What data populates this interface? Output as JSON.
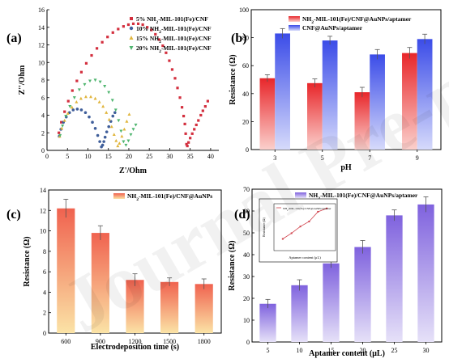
{
  "watermark": "Journal Pre-proof",
  "chart_data": [
    {
      "panel": "(a)",
      "type": "scatter",
      "xlabel": "Z'/Ohm",
      "ylabel": "Z''/Ohm",
      "xlim": [
        0,
        42
      ],
      "ylim": [
        0,
        16
      ],
      "xticks": [
        "0",
        "5",
        "10",
        "15",
        "20",
        "25",
        "30",
        "35",
        "40"
      ],
      "yticks": [
        "0",
        "2",
        "4",
        "6",
        "8",
        "10",
        "12",
        "14",
        "16"
      ],
      "legend_position": "top-right",
      "series": [
        {
          "name": "5% NH2-MIL-101(Fe)/CNF",
          "color": "#d32f3e",
          "marker": "square",
          "x": [
            2.9,
            3.5,
            4.3,
            5.2,
            6.2,
            7.3,
            8.4,
            9.6,
            10.9,
            12.2,
            13.5,
            14.8,
            16.1,
            17.4,
            18.7,
            19.9,
            21.1,
            22.3,
            23.4,
            24.5,
            25.5,
            26.5,
            27.4,
            28.3,
            29.1,
            29.9,
            30.6,
            31.3,
            31.9,
            32.5,
            33.0,
            33.4,
            33.7,
            33.9,
            34.1,
            34.3,
            34.6,
            35.0,
            35.5,
            36.0,
            36.5,
            37.0,
            37.6,
            38.1,
            38.7,
            39.3
          ],
          "y": [
            2.0,
            3.2,
            4.4,
            5.6,
            6.8,
            7.9,
            8.9,
            9.9,
            10.8,
            11.6,
            12.3,
            12.9,
            13.4,
            13.8,
            14.1,
            14.3,
            14.4,
            14.4,
            14.3,
            14.0,
            13.7,
            13.2,
            12.6,
            11.9,
            11.1,
            10.2,
            9.2,
            8.2,
            7.1,
            6.0,
            4.9,
            3.9,
            3.0,
            1.9,
            0.7,
            0.5,
            0.9,
            1.4,
            1.9,
            2.4,
            2.9,
            3.4,
            4.0,
            4.5,
            5.0,
            5.6
          ]
        },
        {
          "name": "10% NH2-MIL-101(Fe)/CNF",
          "color": "#3f5e9a",
          "marker": "circle",
          "x": [
            3.0,
            3.4,
            4.0,
            4.7,
            5.5,
            6.4,
            7.4,
            8.4,
            9.4,
            10.3,
            11.1,
            11.8,
            12.4,
            12.9,
            13.3,
            13.6,
            13.9,
            14.2,
            14.6,
            15.1,
            15.6,
            16.1,
            16.6
          ],
          "y": [
            1.6,
            2.4,
            3.2,
            3.8,
            4.3,
            4.6,
            4.7,
            4.6,
            4.3,
            3.8,
            3.2,
            2.5,
            1.7,
            1.0,
            0.4,
            0.6,
            1.0,
            1.5,
            2.1,
            2.7,
            3.3,
            3.9,
            4.3
          ]
        },
        {
          "name": "15% NH2-MIL-101(Fe)/CNF",
          "color": "#e0b53c",
          "marker": "triangle-up",
          "x": [
            3.1,
            3.6,
            4.3,
            5.1,
            6.1,
            7.2,
            8.3,
            9.5,
            10.7,
            11.8,
            12.8,
            13.7,
            14.5,
            15.2,
            15.8,
            16.4,
            16.9,
            17.3,
            17.7,
            18.3,
            18.9,
            19.5,
            20.1
          ],
          "y": [
            1.6,
            2.5,
            3.4,
            4.2,
            4.9,
            5.5,
            5.9,
            6.1,
            6.1,
            5.9,
            5.5,
            5.0,
            4.3,
            3.5,
            2.7,
            1.8,
            1.1,
            0.5,
            0.8,
            1.6,
            2.4,
            3.3,
            4.1
          ]
        },
        {
          "name": "20% NH2-MIL-101(Fe)/CNF",
          "color": "#4fb56f",
          "marker": "triangle-down",
          "x": [
            3.2,
            3.8,
            4.6,
            5.6,
            6.7,
            7.9,
            9.2,
            10.5,
            11.8,
            13.0,
            14.1,
            15.1,
            16.0,
            16.8,
            17.5,
            18.1,
            18.7,
            19.3,
            19.9,
            20.5,
            21.1,
            21.7
          ],
          "y": [
            1.7,
            2.8,
            3.9,
            5.0,
            6.0,
            6.9,
            7.5,
            7.9,
            8.0,
            7.8,
            7.3,
            6.6,
            5.7,
            4.6,
            3.4,
            2.2,
            1.0,
            0.6,
            1.1,
            1.8,
            2.4,
            2.9
          ]
        }
      ]
    },
    {
      "panel": "(b)",
      "type": "bar",
      "xlabel": "pH",
      "ylabel": "Resistance (Ω)",
      "categories": [
        "3",
        "5",
        "7",
        "9"
      ],
      "ylim": [
        0,
        100
      ],
      "yticks": [
        "0",
        "20",
        "40",
        "60",
        "80",
        "100"
      ],
      "legend_position": "top",
      "series": [
        {
          "name": "NH2-MIL-101(Fe)/CNF@AuNPs/aptamer",
          "color": "#e83a3a",
          "values": [
            51,
            47.5,
            41,
            69
          ],
          "errors": [
            2.5,
            3,
            3.5,
            4
          ]
        },
        {
          "name": "CNF@AuNPs/aptamer",
          "color": "#4a55e6",
          "values": [
            83,
            78,
            68,
            79
          ],
          "errors": [
            3.5,
            3,
            3.5,
            3.5
          ]
        }
      ]
    },
    {
      "panel": "(c)",
      "type": "bar",
      "xlabel": "Electrodeposition time (s)",
      "ylabel": "Resistance (Ω)",
      "categories": [
        "600",
        "900",
        "1200",
        "1500",
        "1800"
      ],
      "ylim": [
        0,
        14
      ],
      "yticks": [
        "0",
        "2",
        "4",
        "6",
        "8",
        "10",
        "12",
        "14"
      ],
      "legend_position": "top-right",
      "series": [
        {
          "name": "NH2-MIL-101(Fe)/CNF@AuNPs",
          "color": "#f07060",
          "values": [
            12.2,
            9.8,
            5.2,
            5.0,
            4.8
          ],
          "errors": [
            0.9,
            0.7,
            0.6,
            0.4,
            0.5
          ]
        }
      ]
    },
    {
      "panel": "(d)",
      "type": "bar",
      "xlabel": "Aptamer content (μL)",
      "ylabel": "Resistance (Ω)",
      "categories": [
        "5",
        "10",
        "15",
        "20",
        "25",
        "30"
      ],
      "ylim": [
        0,
        70
      ],
      "yticks": [
        "0",
        "10",
        "20",
        "30",
        "40",
        "50",
        "60",
        "70"
      ],
      "legend_position": "top-right",
      "series": [
        {
          "name": "NH2-MIL-101(Fe)/CNF@AuNPs/aptamer",
          "color": "#8a6de0",
          "values": [
            17.5,
            26,
            36,
            43.5,
            58,
            63
          ],
          "errors": [
            2,
            2.5,
            2,
            3,
            2.5,
            3.5
          ]
        }
      ],
      "inset": {
        "type": "line",
        "xlabel": "Aptamer content (μL)",
        "ylabel": "Resistance (Ω)",
        "legend": "NH2-MIL-101(Fe)/CNF@AuNPs/aptamer",
        "color": "#d0404a",
        "x": [
          5,
          10,
          15,
          20,
          25,
          30
        ],
        "y": [
          17.5,
          26,
          36,
          43.5,
          58,
          63
        ]
      }
    }
  ]
}
